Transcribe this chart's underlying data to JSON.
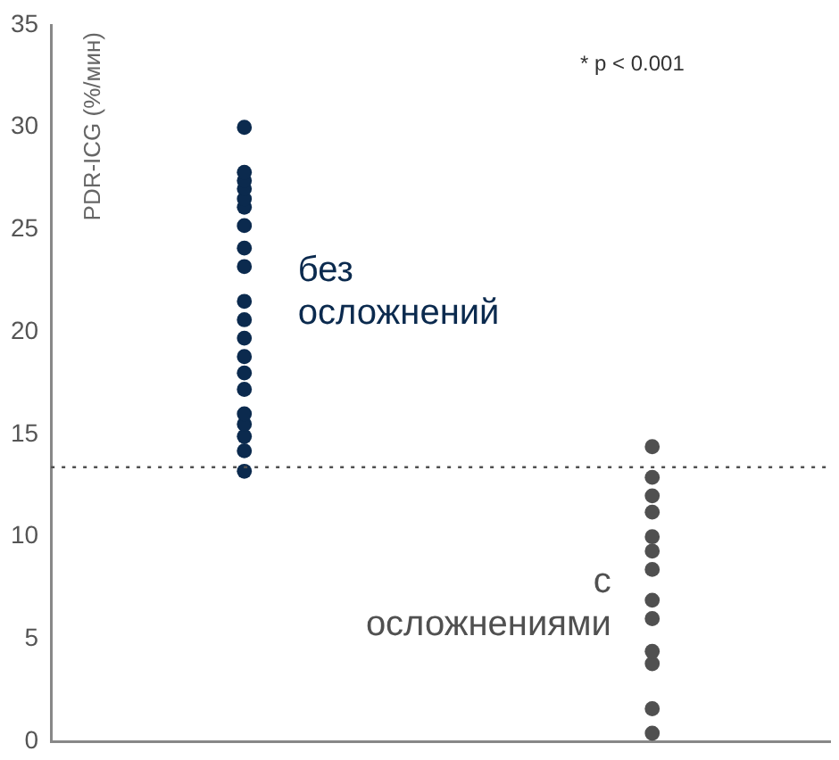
{
  "chart_data": {
    "type": "scatter",
    "ylabel": "PDR-ICG (%/мин)",
    "categories": [
      null,
      null
    ],
    "series": [
      {
        "colors": [
          "#0b2a4e",
          "#505050"
        ],
        "values": [
          30.0,
          14.4
        ]
      },
      {
        "colors": [
          "#0b2a4e",
          "#505050"
        ],
        "values": [
          27.8,
          12.9
        ]
      },
      {
        "colors": [
          "#0b2a4e",
          "#505050"
        ],
        "values": [
          27.4,
          12.0
        ]
      },
      {
        "colors": [
          "#0b2a4e",
          "#505050"
        ],
        "values": [
          27.0,
          11.2
        ]
      },
      {
        "colors": [
          "#0b2a4e",
          "#505050"
        ],
        "values": [
          26.5,
          10.0
        ]
      },
      {
        "colors": [
          "#0b2a4e",
          "#505050"
        ],
        "values": [
          26.1,
          9.3
        ]
      },
      {
        "colors": [
          "#0b2a4e",
          "#505050"
        ],
        "values": [
          25.2,
          8.4
        ]
      },
      {
        "colors": [
          "#0b2a4e",
          "#505050"
        ],
        "values": [
          24.1,
          6.9
        ]
      },
      {
        "colors": [
          "#0b2a4e",
          "#505050"
        ],
        "values": [
          23.2,
          6.0
        ]
      },
      {
        "colors": [
          "#0b2a4e",
          "#505050"
        ],
        "values": [
          21.5,
          4.4
        ]
      },
      {
        "colors": [
          "#0b2a4e",
          "#505050"
        ],
        "values": [
          20.6,
          3.8
        ]
      },
      {
        "colors": [
          "#0b2a4e",
          "#505050"
        ],
        "values": [
          19.7,
          1.6
        ]
      },
      {
        "colors": [
          "#0b2a4e",
          "#505050"
        ],
        "values": [
          18.8,
          0.4
        ]
      },
      {
        "colors": [
          "#0b2a4e",
          null
        ],
        "values": [
          18.0,
          null
        ]
      },
      {
        "colors": [
          "#0b2a4e",
          null
        ],
        "values": [
          17.2,
          null
        ]
      },
      {
        "colors": [
          "#0b2a4e",
          null
        ],
        "values": [
          16.0,
          null
        ]
      },
      {
        "colors": [
          "#0b2a4e",
          null
        ],
        "values": [
          15.5,
          null
        ]
      },
      {
        "colors": [
          "#0b2a4e",
          null
        ],
        "values": [
          14.9,
          null
        ]
      },
      {
        "colors": [
          "#0b2a4e",
          null
        ],
        "values": [
          14.2,
          null
        ]
      },
      {
        "colors": [
          "#0b2a4e",
          null
        ],
        "values": [
          13.2,
          null
        ]
      }
    ],
    "ylim": [
      0,
      35
    ],
    "yticks": [
      0,
      5,
      10,
      15,
      20,
      25,
      30,
      35
    ],
    "grid": false,
    "legend": false,
    "tick_labels": "y",
    "marker": "circle",
    "ref_lines": [
      {
        "axis": "y",
        "value": 13.4,
        "line_style": "dotted",
        "color": "#505050"
      }
    ],
    "annotations": [
      "* p < 0.001",
      "без осложнений",
      "с осложнениями"
    ]
  }
}
